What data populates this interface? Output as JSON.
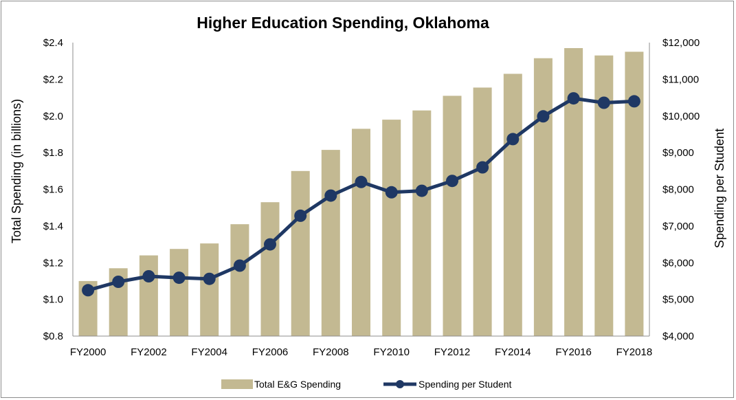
{
  "chart_data": {
    "type": "bar+line",
    "title": "Higher Education Spending, Oklahoma",
    "categories": [
      "FY2000",
      "FY2001",
      "FY2002",
      "FY2003",
      "FY2004",
      "FY2005",
      "FY2006",
      "FY2007",
      "FY2008",
      "FY2009",
      "FY2010",
      "FY2011",
      "FY2012",
      "FY2013",
      "FY2014",
      "FY2015",
      "FY2016",
      "FY2017",
      "FY2018"
    ],
    "x_tick_labels": [
      "FY2000",
      "FY2002",
      "FY2004",
      "FY2006",
      "FY2008",
      "FY2010",
      "FY2012",
      "FY2014",
      "FY2016",
      "FY2018"
    ],
    "y_left": {
      "label": "Total Spending (in billions)",
      "range": [
        0.8,
        2.4
      ],
      "ticks": [
        "$0.8",
        "$1.0",
        "$1.2",
        "$1.4",
        "$1.6",
        "$1.8",
        "$2.0",
        "$2.2",
        "$2.4"
      ]
    },
    "y_right": {
      "label": "Spending per Student",
      "range": [
        4000,
        12000
      ],
      "ticks": [
        "$4,000",
        "$5,000",
        "$6,000",
        "$7,000",
        "$8,000",
        "$9,000",
        "$10,000",
        "$11,000",
        "$12,000"
      ]
    },
    "series": [
      {
        "name": "Total E&G Spending",
        "type": "bar",
        "axis": "left",
        "color": "#c3b992",
        "values": [
          1.1,
          1.17,
          1.24,
          1.275,
          1.305,
          1.41,
          1.53,
          1.7,
          1.815,
          1.93,
          1.98,
          2.03,
          2.11,
          2.155,
          2.23,
          2.315,
          2.37,
          2.33,
          2.35
        ]
      },
      {
        "name": "Spending per Student",
        "type": "line",
        "axis": "right",
        "color": "#1f3864",
        "values": [
          5250,
          5480,
          5630,
          5590,
          5560,
          5920,
          6500,
          7280,
          7830,
          8200,
          7920,
          7960,
          8230,
          8600,
          9370,
          9990,
          10480,
          10360,
          10400
        ]
      }
    ],
    "grid": false,
    "legend_position": "bottom"
  }
}
